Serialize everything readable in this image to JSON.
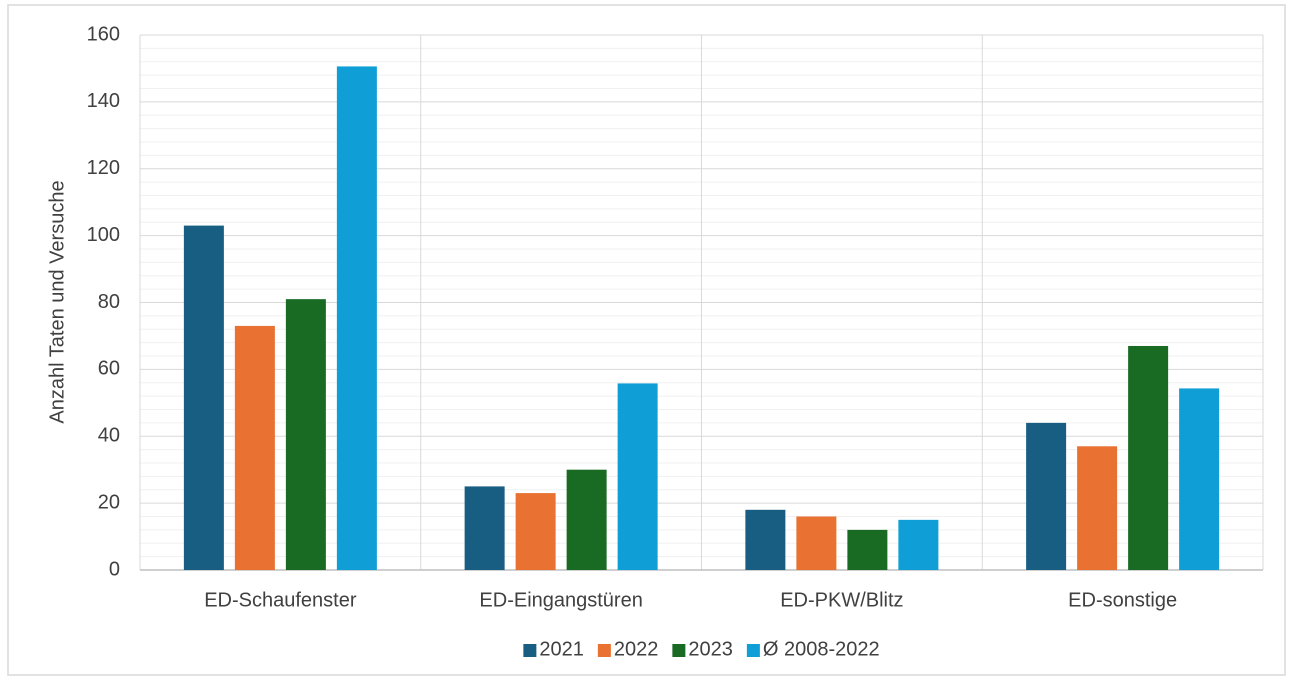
{
  "chart_data": {
    "type": "bar",
    "y_label": "Anzahl Taten und Versuche",
    "categories": [
      "ED-Schaufenster",
      "ED-Eingangstüren",
      "ED-PKW/Blitz",
      "ED-sonstige"
    ],
    "series": [
      {
        "name": "2021",
        "color": "#175e82",
        "values": [
          103,
          25,
          18,
          44
        ]
      },
      {
        "name": "2022",
        "color": "#e97132",
        "values": [
          73,
          23,
          16,
          37
        ]
      },
      {
        "name": "2023",
        "color": "#196b24",
        "values": [
          81,
          30,
          12,
          67
        ]
      },
      {
        "name": "Ø 2008-2022",
        "color": "#0f9ed5",
        "values": [
          150.6,
          55.8,
          15,
          54.3
        ]
      }
    ],
    "ylim": [
      0,
      160
    ],
    "yticks": [
      0,
      20,
      40,
      60,
      80,
      100,
      120,
      140,
      160
    ],
    "grid": true,
    "minor_grid": true,
    "legend": "bottom"
  }
}
